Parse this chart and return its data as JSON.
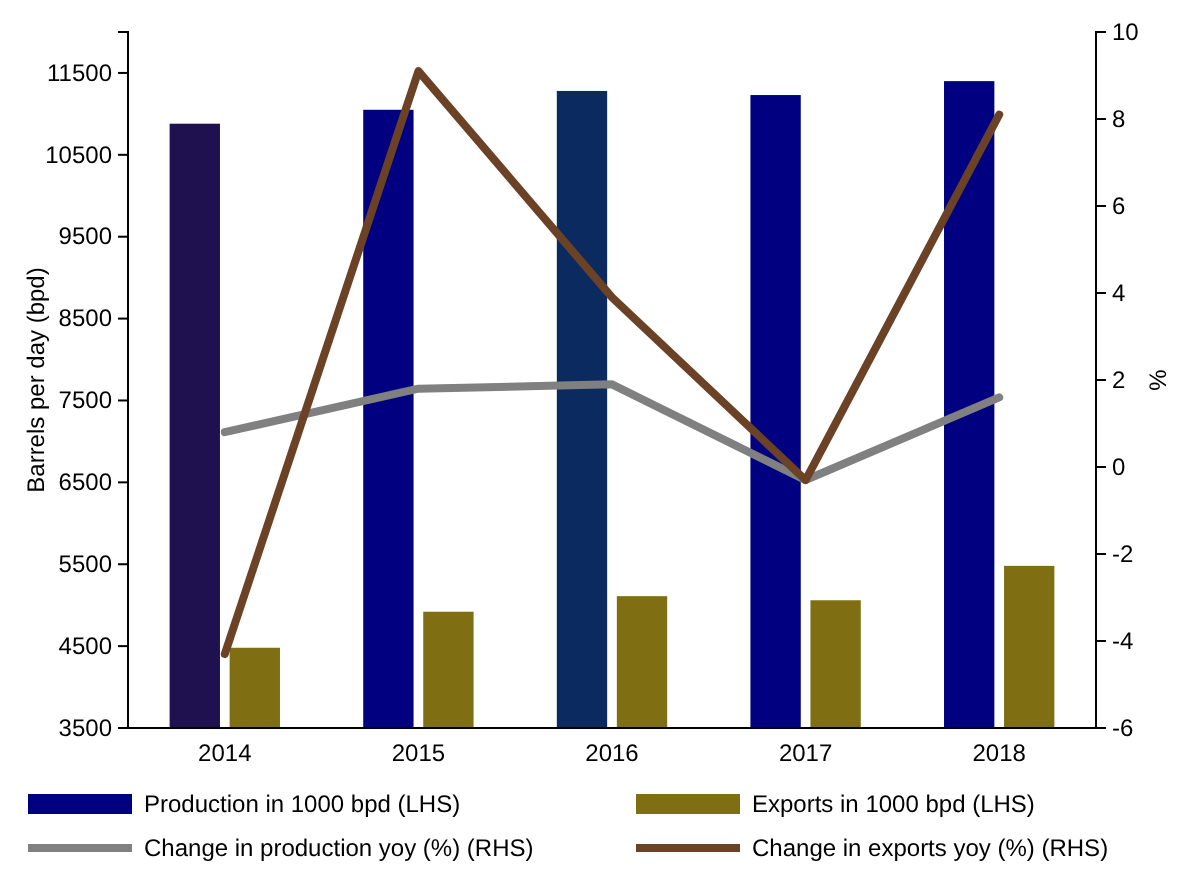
{
  "chart_data": {
    "type": "bar",
    "categories": [
      "2014",
      "2015",
      "2016",
      "2017",
      "2018"
    ],
    "ylabel": "Barrels per day (bpd)",
    "y2label": "%",
    "ylim": [
      3500,
      12000
    ],
    "yticks": [
      3500,
      4500,
      5500,
      6500,
      7500,
      8500,
      9500,
      10500,
      11500
    ],
    "y2lim": [
      -6,
      10
    ],
    "y2ticks": [
      -6,
      -4,
      -2,
      0,
      2,
      4,
      6,
      8,
      10
    ],
    "legend": "bottom",
    "grid": false,
    "series": [
      {
        "name": "Production in 1000 bpd (LHS)",
        "color": "#000080",
        "colors": [
          "#1f1050",
          "#000080",
          "#0a2a60",
          "#000080",
          "#000080"
        ],
        "values": [
          10880,
          11050,
          11280,
          11230,
          11400
        ]
      },
      {
        "name": "Exports in 1000 bpd (LHS)",
        "color": "#7f6e12",
        "values": [
          4480,
          4920,
          5110,
          5060,
          5480
        ]
      },
      {
        "name": "Change in production yoy (%) (RHS)",
        "type": "line",
        "axis": "y2",
        "color": "#808080",
        "values": [
          0.8,
          1.8,
          1.9,
          -0.3,
          1.6
        ]
      },
      {
        "name": "Change in exports yoy (%) (RHS)",
        "type": "line",
        "axis": "y2",
        "color": "#6b4226",
        "values": [
          -4.3,
          9.1,
          3.9,
          -0.3,
          8.1
        ]
      }
    ]
  }
}
